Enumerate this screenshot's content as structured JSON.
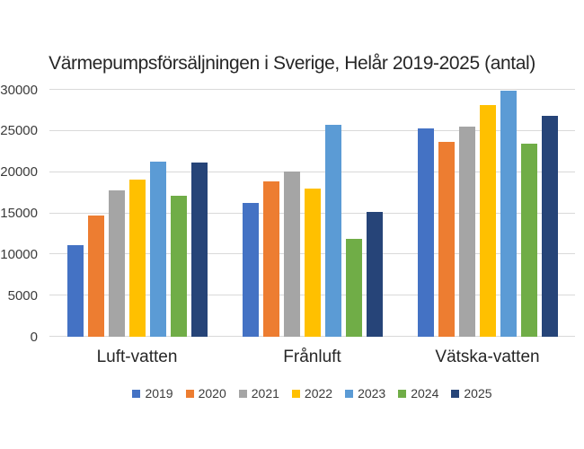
{
  "chart_data": {
    "type": "bar",
    "title": "Värmepumpsförsäljningen i Sverige, Helår 2019-2025 (antal)",
    "categories": [
      "Luft-vatten",
      "Frånluft",
      "Vätska-vatten"
    ],
    "series": [
      {
        "name": "2019",
        "color": "#4472C4",
        "values": [
          11100,
          16300,
          25300
        ]
      },
      {
        "name": "2020",
        "color": "#ED7D31",
        "values": [
          14700,
          18900,
          23700
        ]
      },
      {
        "name": "2021",
        "color": "#A5A5A5",
        "values": [
          17800,
          20100,
          25500
        ]
      },
      {
        "name": "2022",
        "color": "#FFC000",
        "values": [
          19100,
          18000,
          28100
        ]
      },
      {
        "name": "2023",
        "color": "#5B9BD5",
        "values": [
          21300,
          25800,
          29900
        ]
      },
      {
        "name": "2024",
        "color": "#70AD47",
        "values": [
          17100,
          11900,
          23500
        ]
      },
      {
        "name": "2025",
        "color": "#264478",
        "values": [
          21200,
          15200,
          26800
        ]
      }
    ],
    "y_ticks": [
      0,
      5000,
      10000,
      15000,
      20000,
      25000,
      30000
    ],
    "ylim": [
      0,
      30000
    ],
    "grid": true,
    "legend_position": "bottom",
    "gridline_color": "#D9D9D9",
    "axis_line_color": "#D9D9D9",
    "background_color": "#FFFFFF"
  }
}
